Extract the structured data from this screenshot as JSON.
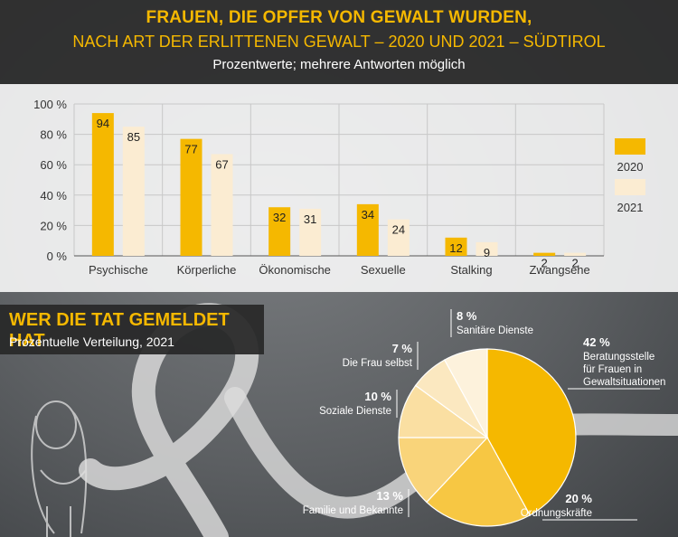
{
  "header": {
    "title_line1": "FRAUEN, DIE OPFER VON GEWALT WURDEN,",
    "title_line2": "NACH ART DER ERLITTENEN GEWALT – 2020 UND 2021 – SÜDTIROL",
    "subtitle": "Prozentwerte; mehrere Antworten möglich"
  },
  "section2": {
    "title": "WER DIE TAT GEMELDET HAT",
    "subtitle": "Prozentuelle Verteilung, 2021"
  },
  "chart_data": [
    {
      "type": "bar",
      "categories": [
        "Psychische",
        "Körperliche",
        "Ökonomische",
        "Sexuelle",
        "Stalking",
        "Zwangsehe"
      ],
      "series": [
        {
          "name": "2020",
          "values": [
            94,
            77,
            32,
            34,
            12,
            2
          ],
          "color": "#f5b800"
        },
        {
          "name": "2021",
          "values": [
            85,
            67,
            31,
            24,
            9,
            2
          ],
          "color": "#fbecd2"
        }
      ],
      "yticks": [
        "100 %",
        "80 %",
        "60 %",
        "40 %",
        "20 %",
        "0 %"
      ],
      "ylim": [
        0,
        100
      ],
      "grid": true,
      "legend": "right"
    },
    {
      "type": "pie",
      "slices": [
        {
          "pct": "42 %",
          "value": 42,
          "label": [
            "Beratungsstelle",
            "für Frauen in",
            "Gewaltsituationen"
          ],
          "color": "#f5b800"
        },
        {
          "pct": "20 %",
          "value": 20,
          "label": [
            "Ordnungskräfte"
          ],
          "color": "#f7c743"
        },
        {
          "pct": "13 %",
          "value": 13,
          "label": [
            "Familie und Bekannte"
          ],
          "color": "#f9d47a"
        },
        {
          "pct": "10 %",
          "value": 10,
          "label": [
            "Soziale Dienste"
          ],
          "color": "#fadfa2"
        },
        {
          "pct": "7 %",
          "value": 7,
          "label": [
            "Die Frau selbst"
          ],
          "color": "#fbe8c0"
        },
        {
          "pct": "8 %",
          "value": 8,
          "label": [
            "Sanitäre Dienste"
          ],
          "color": "#fdf2dc"
        }
      ]
    }
  ]
}
